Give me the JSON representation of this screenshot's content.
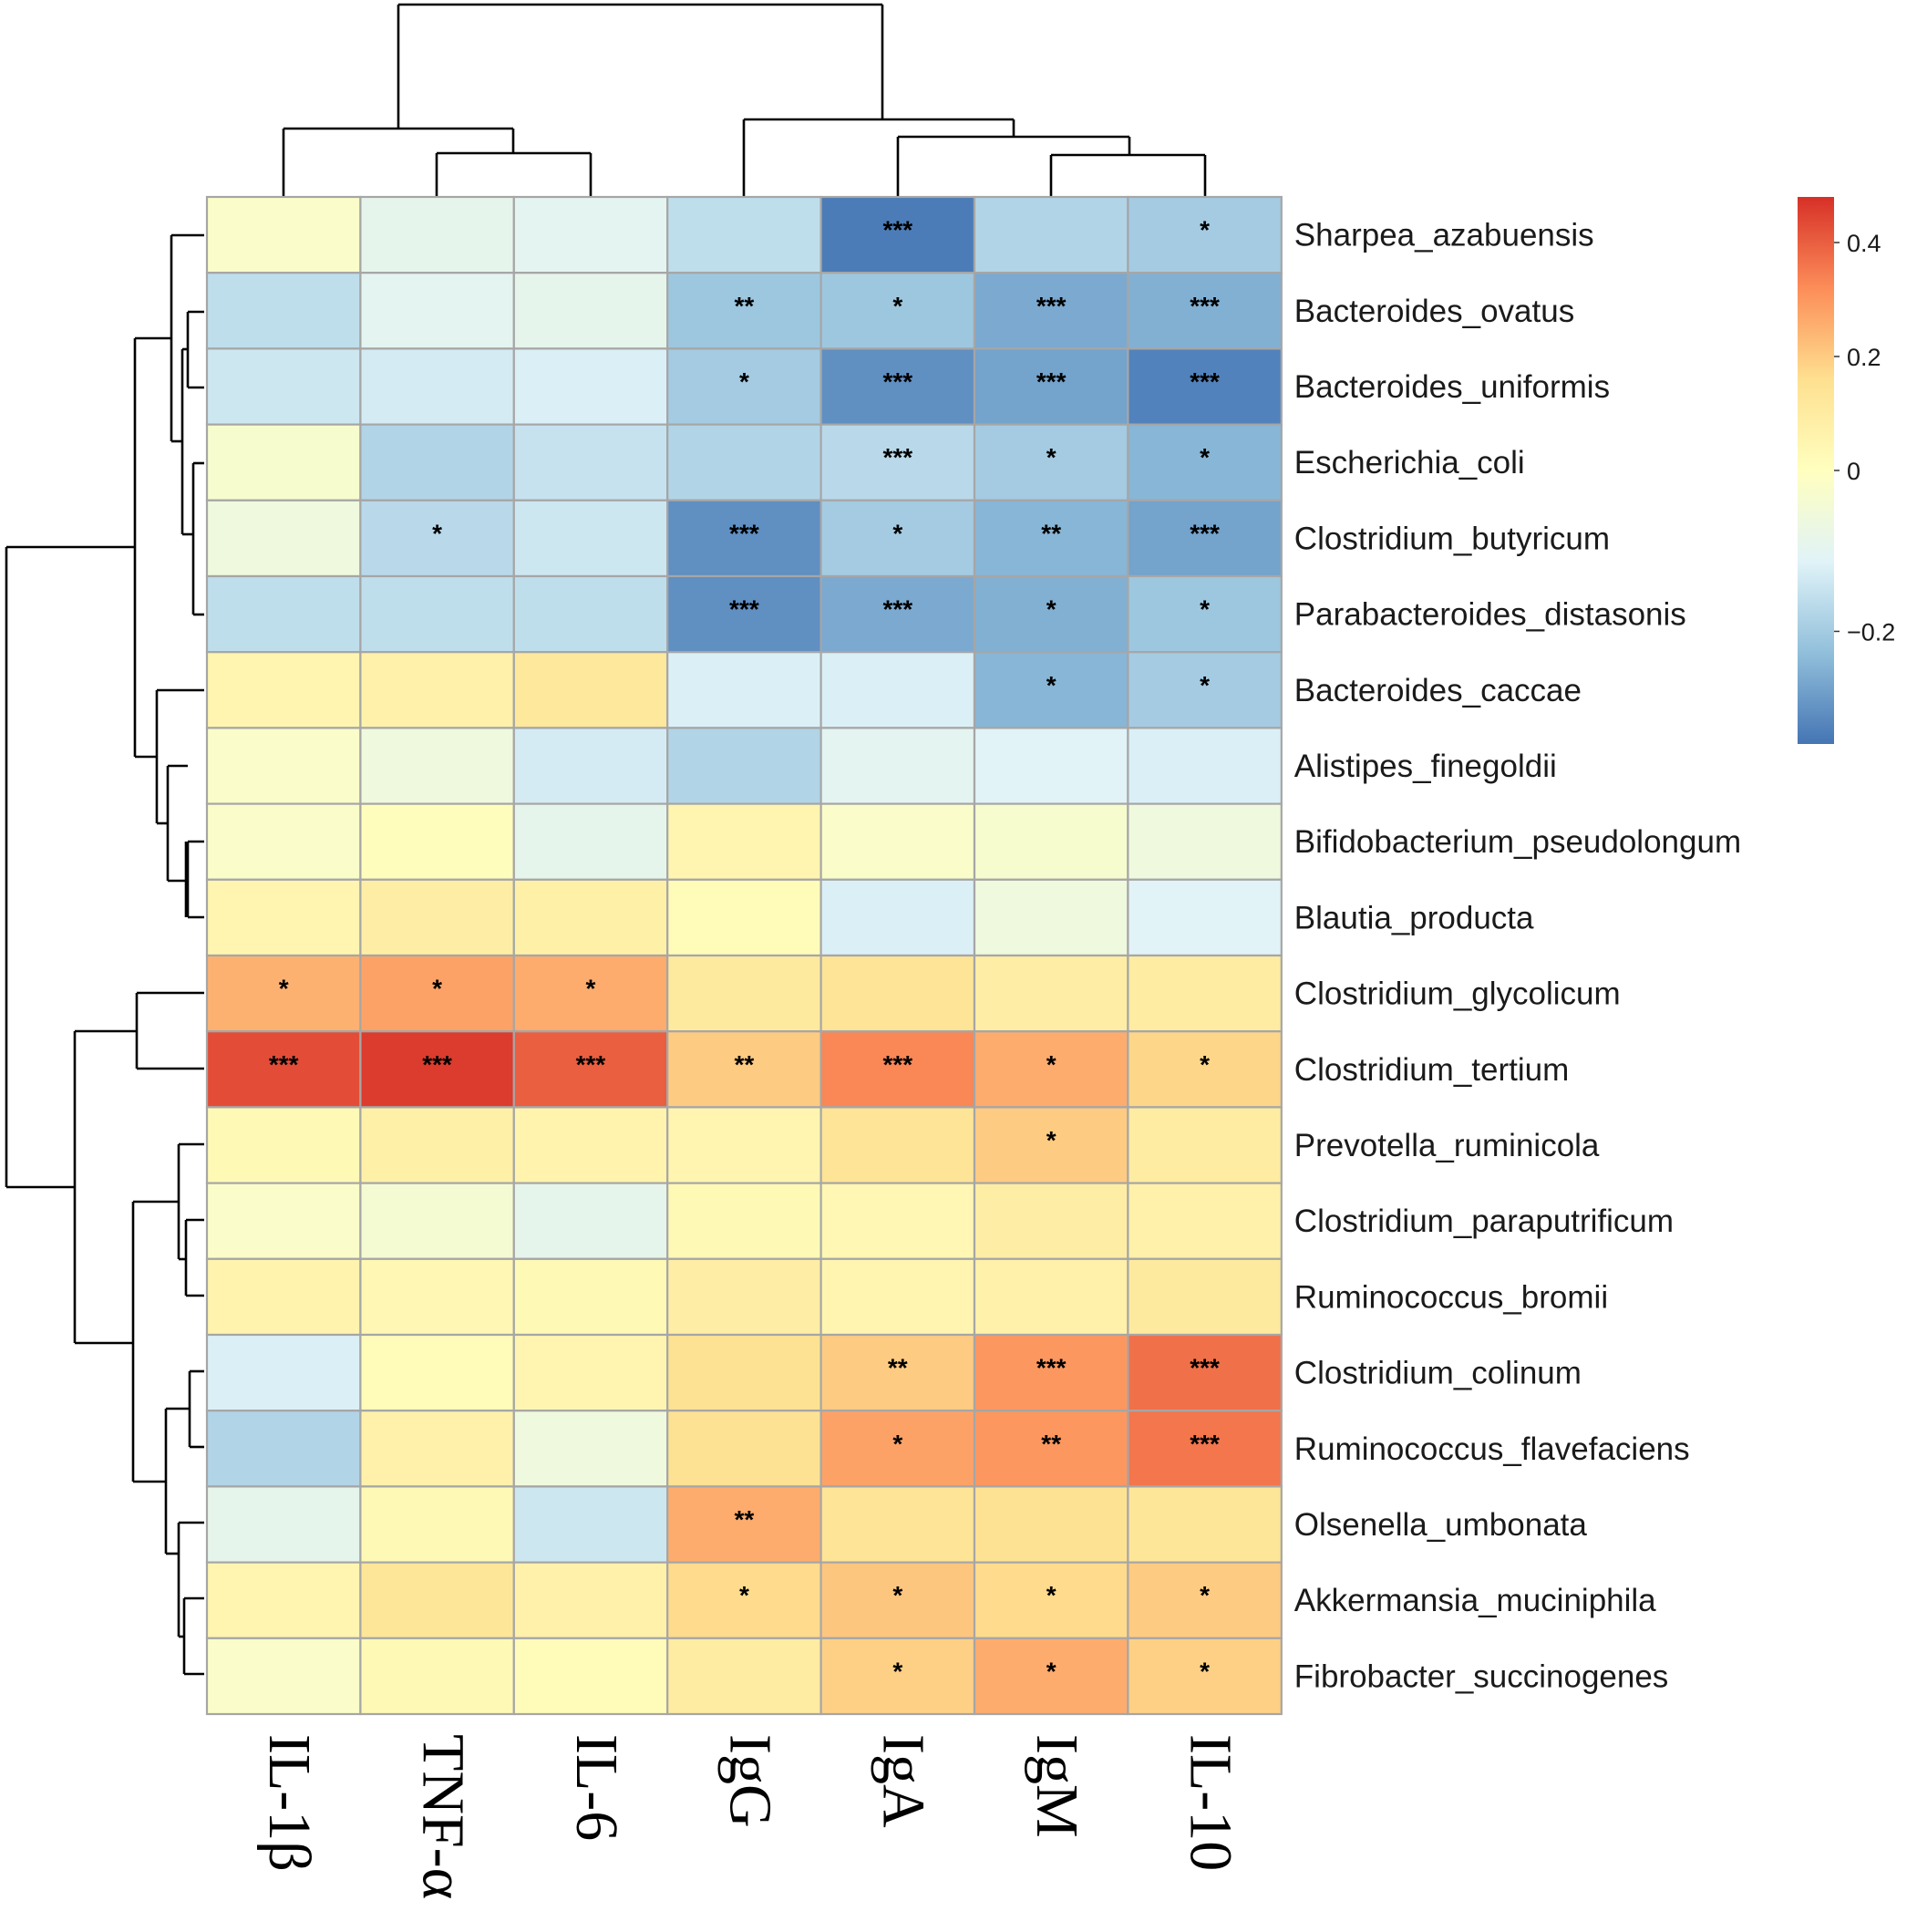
{
  "chart_data": {
    "type": "heatmap",
    "title": "",
    "columns": [
      "IL-1β",
      "TNF-α",
      "IL-6",
      "IgG",
      "IgA",
      "IgM",
      "IL-10"
    ],
    "rows": [
      "Sharpea_azabuensis",
      "Bacteroides_ovatus",
      "Bacteroides_uniformis",
      "Escherichia_coli",
      "Clostridium_butyricum",
      "Parabacteroides_distasonis",
      "Bacteroides_caccae",
      "Alistipes_finegoldii",
      "Bifidobacterium_pseudolongum",
      "Blautia_producta",
      "Clostridium_glycolicum",
      "Clostridium_tertium",
      "Prevotella_ruminicola",
      "Clostridium_paraputrificum",
      "Ruminococcus_bromii",
      "Clostridium_colinum",
      "Ruminococcus_flavefaciens",
      "Olsenella_umbonata",
      "Akkermansia_muciniphila",
      "Fibrobacter_succinogenes"
    ],
    "values": [
      [
        -0.02,
        -0.09,
        -0.1,
        -0.16,
        -0.33,
        -0.18,
        -0.2
      ],
      [
        -0.16,
        -0.1,
        -0.09,
        -0.21,
        -0.21,
        -0.26,
        -0.25
      ],
      [
        -0.14,
        -0.13,
        -0.12,
        -0.2,
        -0.3,
        -0.27,
        -0.32
      ],
      [
        -0.03,
        -0.18,
        -0.15,
        -0.18,
        -0.17,
        -0.2,
        -0.24
      ],
      [
        -0.06,
        -0.17,
        -0.14,
        -0.3,
        -0.2,
        -0.24,
        -0.27
      ],
      [
        -0.16,
        -0.16,
        -0.16,
        -0.3,
        -0.26,
        -0.25,
        -0.21
      ],
      [
        0.05,
        0.07,
        0.12,
        -0.12,
        -0.12,
        -0.24,
        -0.2
      ],
      [
        -0.02,
        -0.06,
        -0.13,
        -0.18,
        -0.1,
        -0.11,
        -0.12
      ],
      [
        -0.02,
        0.01,
        -0.09,
        0.05,
        -0.02,
        -0.03,
        -0.06
      ],
      [
        0.05,
        0.09,
        0.08,
        0.02,
        -0.12,
        -0.06,
        -0.11
      ],
      [
        0.25,
        0.28,
        0.26,
        0.11,
        0.14,
        0.09,
        0.1
      ],
      [
        0.43,
        0.46,
        0.4,
        0.2,
        0.33,
        0.26,
        0.18
      ],
      [
        0.03,
        0.08,
        0.06,
        0.05,
        0.14,
        0.2,
        0.1
      ],
      [
        -0.02,
        -0.04,
        -0.09,
        0.03,
        0.04,
        0.09,
        0.07
      ],
      [
        0.06,
        0.04,
        0.03,
        0.09,
        0.05,
        0.07,
        0.11
      ],
      [
        -0.12,
        0.02,
        0.05,
        0.15,
        0.2,
        0.3,
        0.37
      ],
      [
        -0.18,
        0.07,
        -0.06,
        0.15,
        0.28,
        0.3,
        0.36
      ],
      [
        -0.09,
        0.03,
        -0.14,
        0.26,
        0.14,
        0.15,
        0.13
      ],
      [
        0.05,
        0.13,
        0.07,
        0.17,
        0.21,
        0.17,
        0.2
      ],
      [
        -0.02,
        0.03,
        0.02,
        0.1,
        0.19,
        0.26,
        0.19
      ]
    ],
    "significance": [
      [
        "",
        "",
        "",
        "",
        "***",
        "",
        "*"
      ],
      [
        "",
        "",
        "",
        "**",
        "*",
        "***",
        "***"
      ],
      [
        "",
        "",
        "",
        "*",
        "***",
        "***",
        "***"
      ],
      [
        "",
        "",
        "",
        "",
        "***",
        "*",
        "*"
      ],
      [
        "",
        "*",
        "",
        "***",
        "*",
        "**",
        "***"
      ],
      [
        "",
        "",
        "",
        "***",
        "***",
        "*",
        "*"
      ],
      [
        "",
        "",
        "",
        "",
        "",
        "*",
        "*"
      ],
      [
        "",
        "",
        "",
        "",
        "",
        "",
        ""
      ],
      [
        "",
        "",
        "",
        "",
        "",
        "",
        ""
      ],
      [
        "",
        "",
        "",
        "",
        "",
        "",
        ""
      ],
      [
        "*",
        "*",
        "*",
        "",
        "",
        "",
        ""
      ],
      [
        "***",
        "***",
        "***",
        "**",
        "***",
        "*",
        "*"
      ],
      [
        "",
        "",
        "",
        "",
        "",
        "*",
        ""
      ],
      [
        "",
        "",
        "",
        "",
        "",
        "",
        ""
      ],
      [
        "",
        "",
        "",
        "",
        "",
        "",
        ""
      ],
      [
        "",
        "",
        "",
        "",
        "**",
        "***",
        "***"
      ],
      [
        "",
        "",
        "",
        "",
        "*",
        "**",
        "***"
      ],
      [
        "",
        "",
        "",
        "**",
        "",
        "",
        ""
      ],
      [
        "",
        "",
        "",
        "*",
        "*",
        "*",
        "*"
      ],
      [
        "",
        "",
        "",
        "",
        "*",
        "*",
        "*"
      ]
    ],
    "color_scale": {
      "min": -0.34,
      "max": 0.48,
      "low_color": "#4575b4",
      "mid_color": "#ffffbf",
      "high_color": "#d73027",
      "stops": [
        "#4575b4",
        "#91bfdb",
        "#e0f3f8",
        "#ffffbf",
        "#fee090",
        "#fc8d59",
        "#d73027"
      ]
    },
    "legend_ticks": [
      {
        "value": 0.4,
        "label": "0.4"
      },
      {
        "value": 0.2,
        "label": "0.2"
      },
      {
        "value": 0,
        "label": "0"
      },
      {
        "value": -0.2,
        "label": "−0.2"
      }
    ],
    "legend_placement": "top-right",
    "grid": true,
    "column_dendrogram": true,
    "row_dendrogram": true,
    "grid_color": "#a6a6a6"
  }
}
